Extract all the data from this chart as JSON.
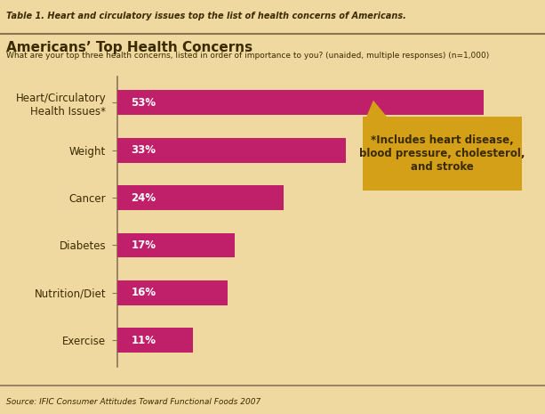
{
  "title": "Americans’ Top Health Concerns",
  "subtitle": "What are your top three health concerns, listed in order of importance to you? (unaided, multiple responses) (n=1,000)",
  "table_label": "Table 1. Heart and circulatory issues top the list of health concerns of Americans.",
  "source": "Source: IFIC Consumer Attitudes Toward Functional Foods 2007",
  "categories": [
    "Heart/Circulatory\nHealth Issues*",
    "Weight",
    "Cancer",
    "Diabetes",
    "Nutrition/Diet",
    "Exercise"
  ],
  "values": [
    53,
    33,
    24,
    17,
    16,
    11
  ],
  "bar_color": "#C0206A",
  "background_color": "#F0D9A0",
  "text_color": "#3A2A00",
  "annotation_bg": "#D4A017",
  "annotation_text": "*Includes heart disease,\nblood pressure, cholesterol,\nand stroke",
  "xlim": [
    0,
    60
  ],
  "bar_height": 0.52
}
